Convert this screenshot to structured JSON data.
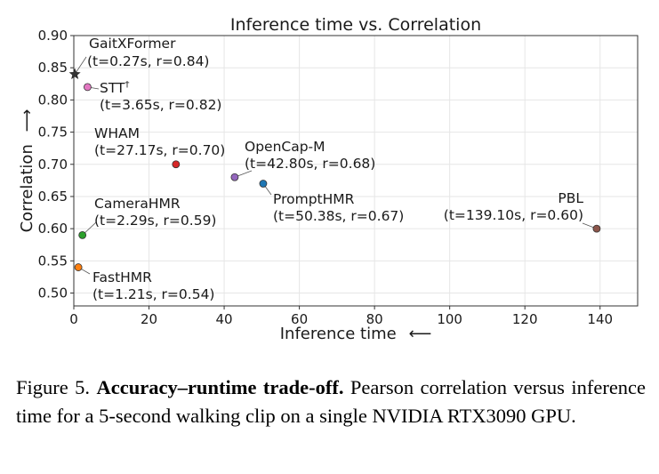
{
  "chart_data": {
    "type": "scatter",
    "title": "Inference time vs. Correlation",
    "xlabel": "Inference time",
    "xlabel_arrow": "⟵",
    "ylabel": "Correlation",
    "ylabel_arrow": "⟶",
    "xlim": [
      0,
      150
    ],
    "ylim": [
      0.48,
      0.9
    ],
    "xticks": [
      "0",
      "20",
      "40",
      "60",
      "80",
      "100",
      "120",
      "140"
    ],
    "yticks": [
      "0.50",
      "0.55",
      "0.60",
      "0.65",
      "0.70",
      "0.75",
      "0.80",
      "0.85",
      "0.90"
    ],
    "grid": true,
    "points": [
      {
        "name": "GaitXFormer",
        "label": "(t=0.27s, r=0.84)",
        "x": 0.27,
        "y": 0.84,
        "color": "#333333",
        "marker": "star"
      },
      {
        "name": "STT",
        "sup": "†",
        "label": "(t=3.65s, r=0.82)",
        "x": 3.65,
        "y": 0.82,
        "color": "#e377c2",
        "marker": "circle"
      },
      {
        "name": "WHAM",
        "label": "(t=27.17s, r=0.70)",
        "x": 27.17,
        "y": 0.7,
        "color": "#d62728",
        "marker": "circle"
      },
      {
        "name": "OpenCap-M",
        "label": "(t=42.80s, r=0.68)",
        "x": 42.8,
        "y": 0.68,
        "color": "#9467bd",
        "marker": "circle"
      },
      {
        "name": "PromptHMR",
        "label": "(t=50.38s, r=0.67)",
        "x": 50.38,
        "y": 0.67,
        "color": "#1f77b4",
        "marker": "circle"
      },
      {
        "name": "PBL",
        "label": "(t=139.10s, r=0.60)",
        "x": 139.1,
        "y": 0.6,
        "color": "#8c564b",
        "marker": "circle"
      },
      {
        "name": "CameraHMR",
        "label": "(t=2.29s, r=0.59)",
        "x": 2.29,
        "y": 0.59,
        "color": "#2ca02c",
        "marker": "circle"
      },
      {
        "name": "FastHMR",
        "label": "(t=1.21s, r=0.54)",
        "x": 1.21,
        "y": 0.54,
        "color": "#ff7f0e",
        "marker": "circle"
      }
    ]
  },
  "caption": {
    "prefix": "Figure 5.",
    "bold": "Accuracy–runtime trade-off.",
    "text": "Pearson correlation versus inference time for a 5-second walking clip on a single NVIDIA RTX3090 GPU."
  }
}
